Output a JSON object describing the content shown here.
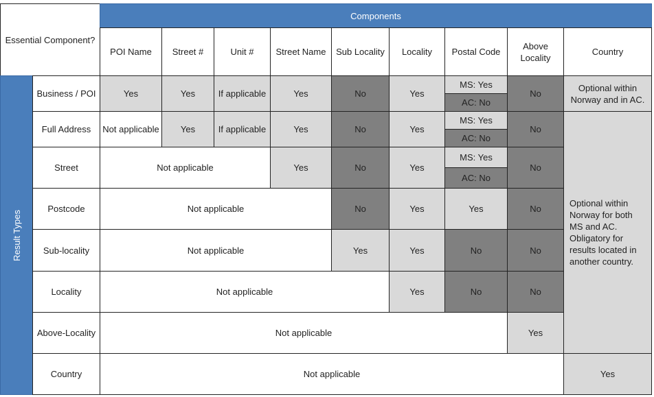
{
  "corner": "Essential Component?",
  "components": "Components",
  "columns": [
    "POI Name",
    "Street #",
    "Unit #",
    "Street Name",
    "Sub Locality",
    "Locality",
    "Postal Code",
    "Above Locality",
    "Country"
  ],
  "side_label": "Result Types",
  "rows": [
    {
      "label": "Business / POI",
      "cells": [
        "Yes",
        "Yes",
        "If applicable",
        "Yes",
        "No",
        "Yes",
        "MS: Yes",
        "AC: No",
        "No",
        "Optional within Norway and in AC."
      ]
    },
    {
      "label": "Full Address",
      "cells": [
        "Not applicable",
        "Yes",
        "If applicable",
        "Yes",
        "No",
        "Yes",
        "MS: Yes",
        "AC: No",
        "No"
      ]
    },
    {
      "label": "Street",
      "cells": [
        "Not applicable",
        "Yes",
        "No",
        "Yes",
        "MS: Yes",
        "AC: No",
        "No"
      ]
    },
    {
      "label": "Postcode",
      "cells": [
        "Not applicable",
        "No",
        "Yes",
        "Yes",
        "No"
      ]
    },
    {
      "label": "Sub-locality",
      "cells": [
        "Not applicable",
        "Yes",
        "Yes",
        "No",
        "No"
      ]
    },
    {
      "label": "Locality",
      "cells": [
        "Not applicable",
        "Yes",
        "No",
        "No"
      ]
    },
    {
      "label": "Above-Locality",
      "cells": [
        "Not applicable",
        "Yes"
      ]
    },
    {
      "label": "Country",
      "cells": [
        "Not applicable",
        "Yes"
      ]
    }
  ],
  "country_note": "Optional within Norway for both MS and AC. Obligatory for results located in another country."
}
